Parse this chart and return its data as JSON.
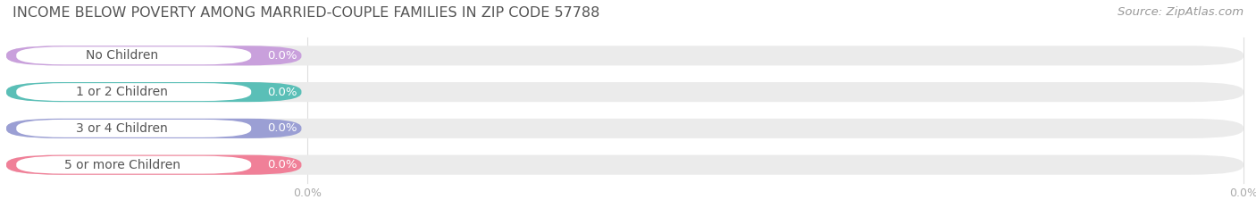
{
  "title": "INCOME BELOW POVERTY AMONG MARRIED-COUPLE FAMILIES IN ZIP CODE 57788",
  "source": "Source: ZipAtlas.com",
  "categories": [
    "No Children",
    "1 or 2 Children",
    "3 or 4 Children",
    "5 or more Children"
  ],
  "values": [
    0.0,
    0.0,
    0.0,
    0.0
  ],
  "bar_colors": [
    "#c9a0dc",
    "#5abfb7",
    "#9b9fd4",
    "#f08098"
  ],
  "bar_bg_color": "#ebebeb",
  "value_pill_text_color": "#ffffff",
  "label_text_color": "#555555",
  "background_color": "#ffffff",
  "value_label": "0.0%",
  "title_color": "#555555",
  "source_color": "#999999",
  "grid_color": "#dddddd",
  "tick_color": "#aaaaaa",
  "title_fontsize": 11.5,
  "source_fontsize": 9.5,
  "label_fontsize": 10,
  "value_fontsize": 9.5,
  "tick_fontsize": 9
}
